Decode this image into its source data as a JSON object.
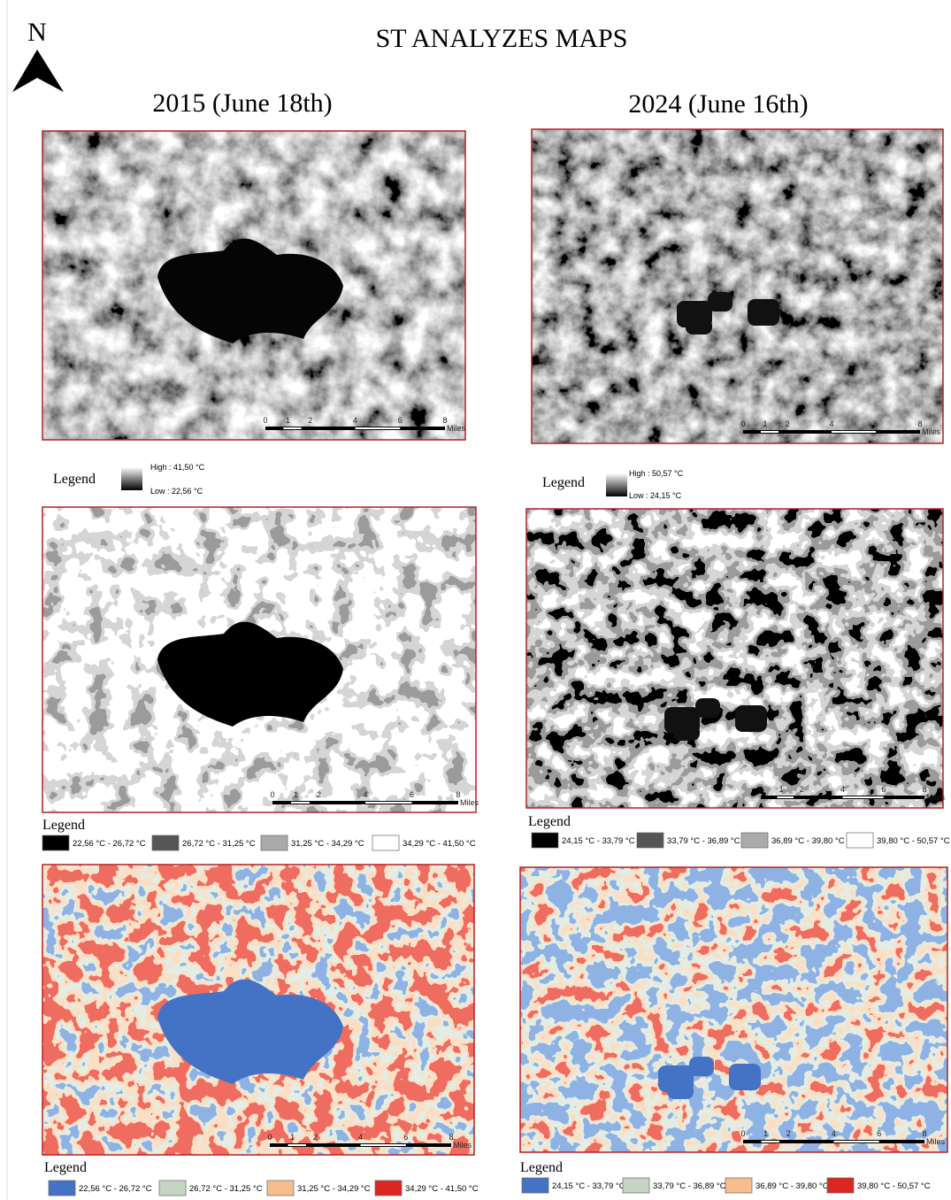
{
  "north": "N",
  "title": "ST  ANALYZES MAPS",
  "scale_bar": {
    "ticks": [
      "0",
      "1",
      "2",
      "4",
      "6",
      "8"
    ],
    "unit": "Miles"
  },
  "panels": [
    {
      "heading": "2015 (June 18th)",
      "gradient_legend": {
        "title": "Legend",
        "high": "High : 41,50 °C",
        "low": "Low : 22,56 °C"
      },
      "class_legend": {
        "title": "Legend",
        "items": [
          {
            "label": "22,56 °C - 26,72 °C",
            "color": "#000000"
          },
          {
            "label": "26,72 °C - 31,25 °C",
            "color": "#555555"
          },
          {
            "label": "31,25 °C - 34,29 °C",
            "color": "#aaaaaa"
          },
          {
            "label": "34,29 °C - 41,50 °C",
            "color": "#ffffff"
          }
        ]
      },
      "color_legend": {
        "title": "Legend",
        "items": [
          {
            "label": "22,56 °C - 26,72 °C",
            "color": "#4472c4"
          },
          {
            "label": "26,72 °C - 31,25 °C",
            "color": "#c6d4c4"
          },
          {
            "label": "31,25 °C - 34,29 °C",
            "color": "#f7bd8c"
          },
          {
            "label": "34,29 °C - 41,50 °C",
            "color": "#da2820"
          }
        ]
      }
    },
    {
      "heading": "2024 (June 16th)",
      "gradient_legend": {
        "title": "Legend",
        "high": "High : 50,57 °C",
        "low": "Low : 24,15 °C"
      },
      "class_legend": {
        "title": "Legend",
        "items": [
          {
            "label": "24,15 °C - 33,79 °C",
            "color": "#000000"
          },
          {
            "label": "33,79 °C - 36,89 °C",
            "color": "#555555"
          },
          {
            "label": "36,89 °C - 39,80 °C",
            "color": "#aaaaaa"
          },
          {
            "label": "39,80 °C - 50,57 °C",
            "color": "#ffffff"
          }
        ]
      },
      "color_legend": {
        "title": "Legend",
        "items": [
          {
            "label": "24,15 °C - 33,79 °C",
            "color": "#4472c4"
          },
          {
            "label": "33,79 °C - 36,89 °C",
            "color": "#c6d4c4"
          },
          {
            "label": "36,89 °C - 39,80 °C",
            "color": "#f7bd8c"
          },
          {
            "label": "39,80 °C - 50,57 °C",
            "color": "#da2820"
          }
        ]
      }
    }
  ]
}
